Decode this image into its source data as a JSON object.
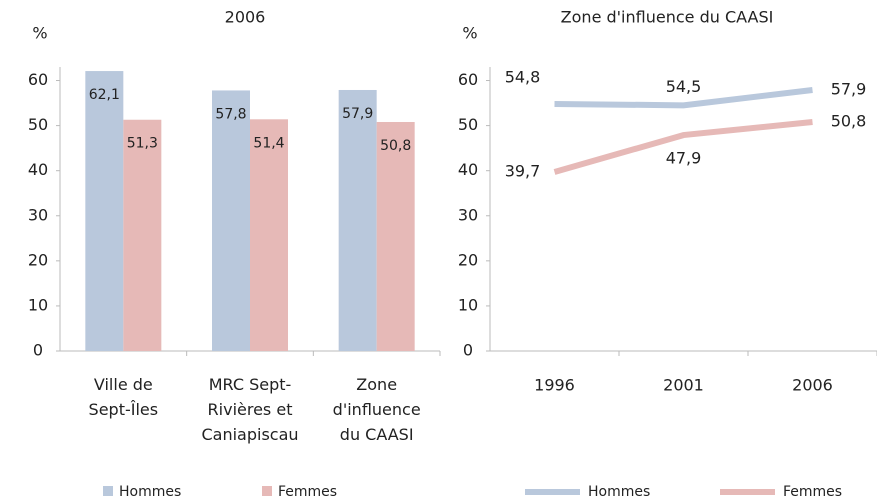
{
  "chart_data": [
    {
      "type": "bar",
      "title": "2006",
      "y_label": "%",
      "categories": [
        [
          "Ville de",
          "Sept-Îles"
        ],
        [
          "MRC Sept-",
          "Rivières et",
          "Caniapiscau"
        ],
        [
          "Zone",
          "d'influence",
          "du CAASI"
        ]
      ],
      "series": [
        {
          "name": "Hommes",
          "color": "#b9c8dc",
          "values": [
            62.1,
            57.8,
            57.9
          ],
          "value_labels": [
            "62,1",
            "57,8",
            "57,9"
          ]
        },
        {
          "name": "Femmes",
          "color": "#e6b9b7",
          "values": [
            51.3,
            51.4,
            50.8
          ],
          "value_labels": [
            "51,3",
            "51,4",
            "50,8"
          ]
        }
      ],
      "ylim": [
        0,
        63
      ],
      "yticks": [
        0,
        10,
        20,
        30,
        40,
        50,
        60
      ]
    },
    {
      "type": "line",
      "title": "Zone d'influence du CAASI",
      "y_label": "%",
      "categories": [
        "1996",
        "2001",
        "2006"
      ],
      "series": [
        {
          "name": "Hommes",
          "color": "#b9c8dc",
          "values": [
            54.8,
            54.5,
            57.9
          ],
          "value_labels": [
            "54,8",
            "54,5",
            "57,9"
          ]
        },
        {
          "name": "Femmes",
          "color": "#e6b9b7",
          "values": [
            39.7,
            47.9,
            50.8
          ],
          "value_labels": [
            "39,7",
            "47,9",
            "50,8"
          ]
        }
      ],
      "ylim": [
        0,
        63
      ],
      "yticks": [
        0,
        10,
        20,
        30,
        40,
        50,
        60
      ]
    }
  ]
}
